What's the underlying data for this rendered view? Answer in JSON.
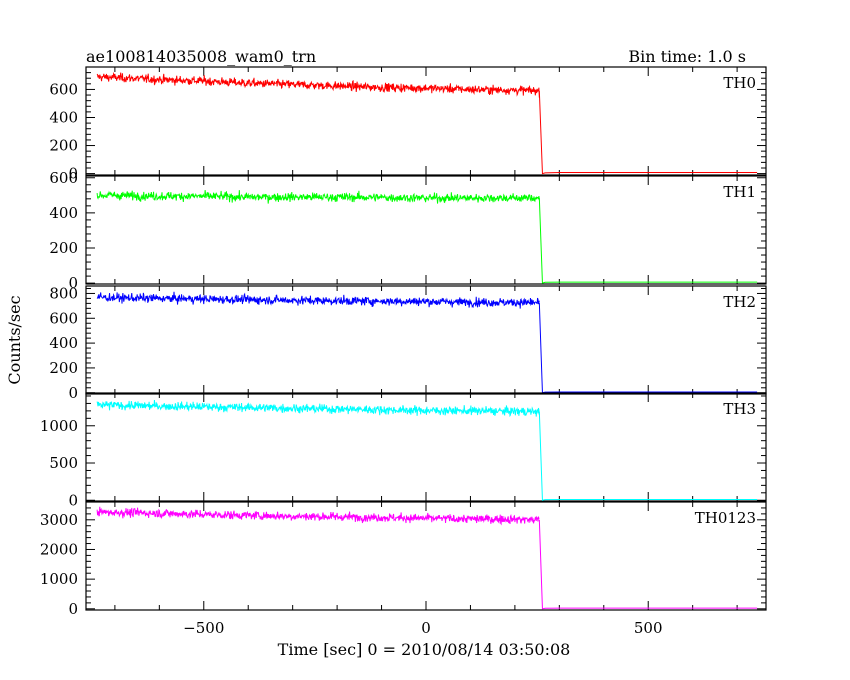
{
  "chart_data": {
    "type": "line",
    "title": "ae100814035008_wam0_trn",
    "subtitle": "Bin time: 1.0 s",
    "xlabel": "Time [sec] 0 = 2010/08/14 03:50:08",
    "ylabel": "Counts/sec",
    "xlim": [
      -765,
      765
    ],
    "x_ticks": [
      -500,
      0,
      500
    ],
    "x_tick_labels": [
      "−500",
      "0",
      "500"
    ],
    "grid": false,
    "panels": [
      {
        "name": "TH0",
        "color": "#ff0000",
        "ylim": [
          -10,
          760
        ],
        "y_ticks": [
          0,
          200,
          400,
          600
        ],
        "y_tick_labels": [
          "0",
          "200",
          "400",
          "600"
        ],
        "series": [
          {
            "x": [
              -740,
              -700,
              -600,
              -500,
              -400,
              -300,
              -200,
              -100,
              0,
              100,
              200,
              255
            ],
            "y": [
              690,
              685,
              670,
              660,
              645,
              635,
              625,
              615,
              610,
              600,
              595,
              590
            ]
          },
          {
            "x": [
              262,
              268,
              300,
              400,
              500,
              600,
              700,
              745
            ],
            "y": [
              0,
              5,
              8,
              8,
              8,
              8,
              8,
              8
            ]
          }
        ]
      },
      {
        "name": "TH1",
        "color": "#00ff00",
        "ylim": [
          -5,
          610
        ],
        "y_ticks": [
          0,
          200,
          400,
          600
        ],
        "y_tick_labels": [
          "0",
          "200",
          "400",
          "600"
        ],
        "series": [
          {
            "x": [
              -740,
              -700,
              -600,
              -500,
              -400,
              -300,
              -200,
              -100,
              0,
              100,
              200,
              255
            ],
            "y": [
              500,
              500,
              495,
              495,
              490,
              490,
              490,
              488,
              485,
              485,
              485,
              485
            ]
          },
          {
            "x": [
              262,
              268,
              300,
              400,
              500,
              600,
              700,
              745
            ],
            "y": [
              0,
              5,
              6,
              6,
              6,
              6,
              6,
              6
            ]
          }
        ]
      },
      {
        "name": "TH2",
        "color": "#0000ff",
        "ylim": [
          -10,
          860
        ],
        "y_ticks": [
          0,
          200,
          400,
          600,
          800
        ],
        "y_tick_labels": [
          "0",
          "200",
          "400",
          "600",
          "800"
        ],
        "series": [
          {
            "x": [
              -740,
              -700,
              -600,
              -500,
              -400,
              -300,
              -200,
              -100,
              0,
              100,
              200,
              255
            ],
            "y": [
              770,
              765,
              760,
              755,
              750,
              745,
              740,
              738,
              735,
              730,
              728,
              725
            ]
          },
          {
            "x": [
              262,
              268,
              300,
              400,
              500,
              600,
              700,
              745
            ],
            "y": [
              0,
              5,
              6,
              6,
              6,
              6,
              6,
              6
            ]
          }
        ]
      },
      {
        "name": "TH3",
        "color": "#00ffff",
        "ylim": [
          -10,
          1440
        ],
        "y_ticks": [
          0,
          500,
          1000
        ],
        "y_tick_labels": [
          "0",
          "500",
          "1000"
        ],
        "series": [
          {
            "x": [
              -740,
              -700,
              -600,
              -500,
              -400,
              -300,
              -200,
              -100,
              0,
              100,
              200,
              255
            ],
            "y": [
              1280,
              1275,
              1265,
              1255,
              1245,
              1235,
              1225,
              1215,
              1205,
              1200,
              1195,
              1190
            ]
          },
          {
            "x": [
              262,
              268,
              300,
              400,
              500,
              600,
              700,
              745
            ],
            "y": [
              0,
              8,
              10,
              10,
              10,
              10,
              10,
              10
            ]
          }
        ]
      },
      {
        "name": "TH0123",
        "color": "#ff00ff",
        "ylim": [
          -40,
          3600
        ],
        "y_ticks": [
          0,
          1000,
          2000,
          3000
        ],
        "y_tick_labels": [
          "0",
          "1000",
          "2000",
          "3000"
        ],
        "series": [
          {
            "x": [
              -740,
              -700,
              -600,
              -500,
              -400,
              -300,
              -200,
              -100,
              0,
              100,
              200,
              255
            ],
            "y": [
              3260,
              3250,
              3220,
              3180,
              3150,
              3120,
              3100,
              3080,
              3050,
              3030,
              3020,
              3000
            ]
          },
          {
            "x": [
              262,
              268,
              300,
              400,
              500,
              600,
              700,
              745
            ],
            "y": [
              0,
              20,
              25,
              25,
              25,
              25,
              25,
              25
            ]
          }
        ]
      }
    ]
  }
}
